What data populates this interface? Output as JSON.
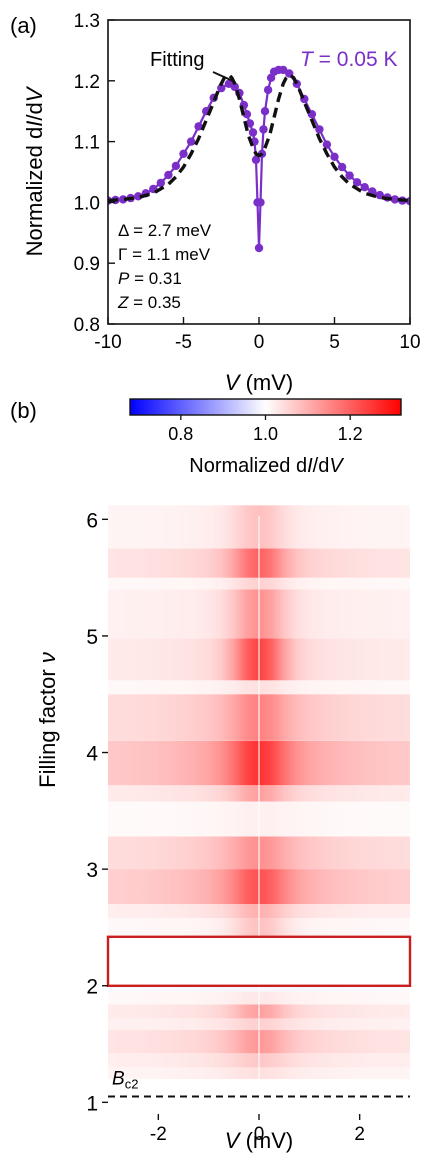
{
  "chart_data": [
    {
      "type": "line",
      "panel_label": "(a)",
      "xlabel": "V (mV)",
      "xlabel_var": "V",
      "xlabel_unit": " (mV)",
      "ylabel": "Normalized dI/dV",
      "ylabel_pre": "Normalized d",
      "ylabel_i": "I",
      "ylabel_mid": "/d",
      "ylabel_v": "V",
      "xlim": [
        -10,
        10
      ],
      "ylim": [
        0.8,
        1.3
      ],
      "xticks": [
        -10,
        -5,
        0,
        5,
        10
      ],
      "xtick_labels": [
        "-10",
        "-5",
        "0",
        "5",
        "10"
      ],
      "yticks": [
        0.8,
        0.9,
        1.0,
        1.1,
        1.2,
        1.3
      ],
      "ytick_labels": [
        "0.8",
        "0.9",
        "1.0",
        "1.1",
        "1.2",
        "1.3"
      ],
      "series": [
        {
          "name": "T = 0.05 K",
          "name_var": "T",
          "name_rest": " = 0.05 K",
          "color": "#7a2fc9",
          "style": "line+markers",
          "x": [
            -10,
            -9.5,
            -9,
            -8.5,
            -8,
            -7.5,
            -7,
            -6.5,
            -6,
            -5.5,
            -5,
            -4.5,
            -4,
            -3.5,
            -3,
            -2.5,
            -2,
            -1.6,
            -1.3,
            -1,
            -0.8,
            -0.6,
            -0.4,
            -0.3,
            -0.2,
            -0.1,
            0,
            0.1,
            0.2,
            0.3,
            0.4,
            0.6,
            0.8,
            1,
            1.3,
            1.6,
            2,
            2.5,
            3,
            3.5,
            4,
            4.5,
            5,
            5.5,
            6,
            6.5,
            7,
            7.5,
            8,
            8.5,
            9,
            9.5,
            10
          ],
          "y": [
            1.003,
            1.004,
            1.005,
            1.007,
            1.01,
            1.015,
            1.022,
            1.032,
            1.045,
            1.06,
            1.08,
            1.1,
            1.125,
            1.15,
            1.172,
            1.188,
            1.195,
            1.19,
            1.18,
            1.16,
            1.145,
            1.13,
            1.115,
            1.1,
            1.07,
            1.0,
            0.925,
            1.0,
            1.08,
            1.12,
            1.15,
            1.185,
            1.205,
            1.215,
            1.218,
            1.218,
            1.212,
            1.195,
            1.17,
            1.145,
            1.12,
            1.095,
            1.075,
            1.058,
            1.044,
            1.033,
            1.025,
            1.018,
            1.012,
            1.008,
            1.005,
            1.003,
            1.002
          ]
        },
        {
          "name": "Fitting",
          "color": "#111111",
          "style": "dashed",
          "x": [
            -10,
            -9,
            -8,
            -7,
            -6,
            -5.5,
            -5,
            -4.5,
            -4,
            -3.5,
            -3,
            -2.6,
            -2.3,
            -2.0,
            -1.8,
            -1.6,
            -1.3,
            -1.0,
            -0.7,
            -0.4,
            -0.2,
            0,
            0.2,
            0.4,
            0.7,
            1.0,
            1.3,
            1.6,
            1.8,
            2.0,
            2.3,
            2.6,
            3,
            3.5,
            4,
            4.5,
            5,
            5.5,
            6,
            7,
            8,
            9,
            10
          ],
          "y": [
            1.003,
            1.005,
            1.008,
            1.015,
            1.03,
            1.042,
            1.058,
            1.08,
            1.105,
            1.135,
            1.165,
            1.19,
            1.205,
            1.21,
            1.205,
            1.195,
            1.17,
            1.14,
            1.11,
            1.09,
            1.08,
            1.077,
            1.08,
            1.09,
            1.11,
            1.14,
            1.17,
            1.195,
            1.205,
            1.21,
            1.205,
            1.19,
            1.165,
            1.135,
            1.105,
            1.08,
            1.058,
            1.042,
            1.03,
            1.015,
            1.008,
            1.005,
            1.003
          ]
        }
      ],
      "annotations": [
        {
          "text": "Fitting"
        },
        {
          "var": "Δ",
          "rest": " = 2.7 meV"
        },
        {
          "var": "Γ",
          "rest": " = 1.1 meV"
        },
        {
          "var": "P",
          "rest": " = 0.31",
          "italic": true
        },
        {
          "var": "Z",
          "rest": " = 0.35",
          "italic": true
        }
      ]
    },
    {
      "type": "heatmap",
      "panel_label": "(b)",
      "xlabel": "V (mV)",
      "xlabel_var": "V",
      "xlabel_unit": " (mV)",
      "ylabel": "Filling factor ν",
      "ylabel_text": "Filling factor ",
      "ylabel_var": "ν",
      "xlim": [
        -3,
        3
      ],
      "ylim": [
        0.9,
        6.2
      ],
      "xticks": [
        -2,
        0,
        2
      ],
      "xtick_labels": [
        "-2",
        "0",
        "2"
      ],
      "yticks": [
        1,
        2,
        3,
        4,
        5,
        6
      ],
      "ytick_labels": [
        "1",
        "2",
        "3",
        "4",
        "5",
        "6"
      ],
      "colorbar": {
        "label": "Normalized dI/dV",
        "label_pre": "Normalized d",
        "label_i": "I",
        "label_mid": "/d",
        "label_v": "V",
        "range": [
          0.68,
          1.32
        ],
        "ticks": [
          0.8,
          1.0,
          1.2
        ],
        "tick_labels": [
          "0.8",
          "1.0",
          "1.2"
        ],
        "colors": [
          "#0000ff",
          "#ffffff",
          "#ff0000"
        ]
      },
      "highlight_box": {
        "y_range": [
          2.0,
          2.42
        ],
        "color": "#c81e1e"
      },
      "dashed_line": {
        "y": 1.05,
        "label_var": "B",
        "label_sub": "c2"
      },
      "bands": [
        {
          "y": [
            1.2,
            1.3
          ],
          "base": 1.03,
          "zbp": 1.04
        },
        {
          "y": [
            1.3,
            1.42
          ],
          "base": 1.05,
          "zbp": 1.07
        },
        {
          "y": [
            1.42,
            1.62
          ],
          "base": 1.08,
          "zbp": 1.13
        },
        {
          "y": [
            1.62,
            1.72
          ],
          "base": 1.04,
          "zbp": 1.06
        },
        {
          "y": [
            1.72,
            1.84
          ],
          "base": 1.06,
          "zbp": 1.12
        },
        {
          "y": [
            1.84,
            1.95
          ],
          "base": 1.02,
          "zbp": 1.03
        },
        {
          "y": [
            1.95,
            2.0
          ],
          "base": 0.985,
          "zbp": 0.99
        },
        {
          "y": [
            2.0,
            2.42
          ],
          "base": 1.0,
          "zbp": 1.0
        },
        {
          "y": [
            2.42,
            2.58
          ],
          "base": 1.02,
          "zbp": 1.08
        },
        {
          "y": [
            2.58,
            2.7
          ],
          "base": 1.05,
          "zbp": 1.1
        },
        {
          "y": [
            2.7,
            3.0
          ],
          "base": 1.14,
          "zbp": 1.22
        },
        {
          "y": [
            3.0,
            3.28
          ],
          "base": 1.1,
          "zbp": 1.14
        },
        {
          "y": [
            3.28,
            3.58
          ],
          "base": 1.015,
          "zbp": 1.02
        },
        {
          "y": [
            3.58,
            3.72
          ],
          "base": 1.06,
          "zbp": 1.12
        },
        {
          "y": [
            3.72,
            4.1
          ],
          "base": 1.16,
          "zbp": 1.26
        },
        {
          "y": [
            4.1,
            4.5
          ],
          "base": 1.1,
          "zbp": 1.16
        },
        {
          "y": [
            4.5,
            4.62
          ],
          "base": 1.02,
          "zbp": 1.04
        },
        {
          "y": [
            4.62,
            4.98
          ],
          "base": 1.06,
          "zbp": 1.24
        },
        {
          "y": [
            4.98,
            5.4
          ],
          "base": 1.04,
          "zbp": 1.14
        },
        {
          "y": [
            5.4,
            5.5
          ],
          "base": 1.02,
          "zbp": 1.06
        },
        {
          "y": [
            5.5,
            5.75
          ],
          "base": 1.08,
          "zbp": 1.2
        },
        {
          "y": [
            5.75,
            6.12
          ],
          "base": 1.03,
          "zbp": 1.08
        }
      ]
    }
  ]
}
